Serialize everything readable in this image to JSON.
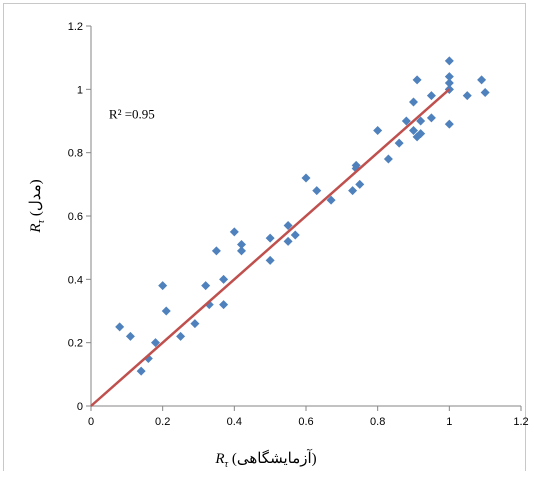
{
  "chart_data": {
    "type": "scatter",
    "title": "",
    "xlabel": "R_τ (آزمایشگاهی)",
    "ylabel": "R_τ (مدل)",
    "xlabel_parts": {
      "var": "R",
      "sub": "τ",
      "text": " (آزمایشگاهی)"
    },
    "ylabel_parts": {
      "var": "R",
      "sub": "τ",
      "text": " (مدل)"
    },
    "xlim": [
      0,
      1.2
    ],
    "ylim": [
      0,
      1.2
    ],
    "xticks": [
      0,
      0.2,
      0.4,
      0.6,
      0.8,
      1,
      1.2
    ],
    "yticks": [
      0,
      0.2,
      0.4,
      0.6,
      0.8,
      1,
      1.2
    ],
    "xtick_labels": [
      "0",
      "0.2",
      "0.4",
      "0.6",
      "0.8",
      "1",
      "1.2"
    ],
    "ytick_labels": [
      "0",
      "0.2",
      "0.4",
      "0.6",
      "0.8",
      "1",
      "1.2"
    ],
    "grid": false,
    "annotation": {
      "text": "R² =0.95",
      "x": 0.05,
      "y": 0.92
    },
    "marker_color": "#4f81bd",
    "line_color": "#c0504d",
    "fit_line": {
      "x": [
        0,
        1
      ],
      "y": [
        0,
        1
      ]
    },
    "points": {
      "x": [
        0.08,
        0.11,
        0.14,
        0.16,
        0.18,
        0.2,
        0.21,
        0.25,
        0.29,
        0.32,
        0.33,
        0.35,
        0.37,
        0.37,
        0.4,
        0.42,
        0.42,
        0.5,
        0.5,
        0.55,
        0.55,
        0.57,
        0.6,
        0.63,
        0.67,
        0.73,
        0.74,
        0.74,
        0.75,
        0.8,
        0.83,
        0.86,
        0.88,
        0.9,
        0.9,
        0.91,
        0.91,
        0.92,
        0.92,
        0.95,
        0.95,
        1.0,
        1.0,
        1.0,
        1.0,
        1.0,
        1.0,
        1.05,
        1.09,
        1.1
      ],
      "y": [
        0.25,
        0.22,
        0.11,
        0.15,
        0.2,
        0.38,
        0.3,
        0.22,
        0.26,
        0.38,
        0.32,
        0.49,
        0.32,
        0.4,
        0.55,
        0.51,
        0.49,
        0.46,
        0.53,
        0.52,
        0.57,
        0.54,
        0.72,
        0.68,
        0.65,
        0.68,
        0.76,
        0.75,
        0.7,
        0.87,
        0.78,
        0.83,
        0.9,
        0.87,
        0.96,
        0.85,
        1.03,
        0.86,
        0.9,
        0.91,
        0.98,
        0.89,
        1.0,
        1.02,
        1.04,
        1.09,
        1.0,
        0.98,
        1.03,
        0.99
      ]
    }
  }
}
